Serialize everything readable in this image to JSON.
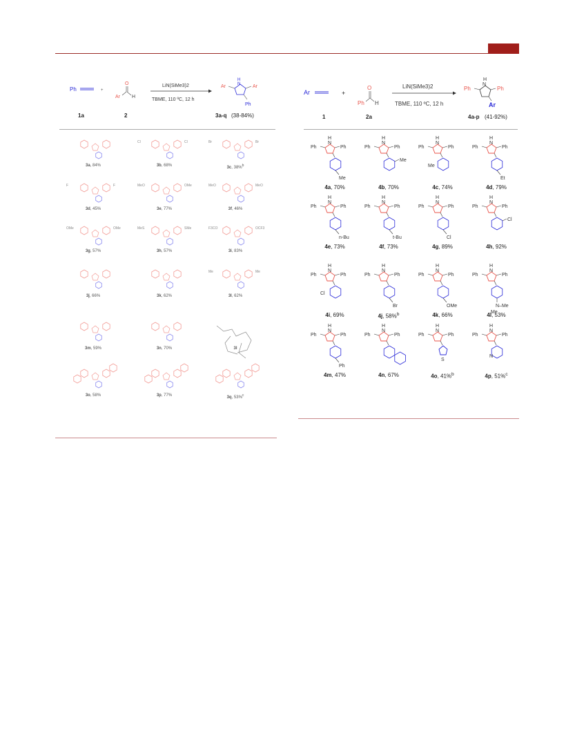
{
  "colors": {
    "accent": "#a01e1a",
    "substituent": "#e8534a",
    "reagent_blue": "#2a2ad8",
    "faded_red": "#f29b95"
  },
  "left_scheme": {
    "reactant1": "Ph",
    "reactant1_label": "1a",
    "plus": "+",
    "reactant2_ar": "Ar",
    "reactant2_h": "H",
    "reactant2_o": "O",
    "reactant2_label": "2",
    "reagent": "LiN(SiMe3)2",
    "conditions": "TBME, 110 ºC, 12 h",
    "product_ar_left": "Ar",
    "product_ar_right": "Ar",
    "product_nh": "H",
    "product_n": "N",
    "product_ph": "Ph",
    "product_label": "3a-q",
    "product_yield": "(38-84%)",
    "compounds": [
      {
        "id": "3a",
        "yield": ", 84%"
      },
      {
        "id": "3b",
        "yield": ", 68%"
      },
      {
        "id": "3c",
        "yield": ", 38%",
        "sup": "b"
      },
      {
        "id": "3d",
        "yield": ", 45%"
      },
      {
        "id": "3e",
        "yield": ", 77%"
      },
      {
        "id": "3f",
        "yield": ", 46%"
      },
      {
        "id": "3g",
        "yield": ", 57%"
      },
      {
        "id": "3h",
        "yield": ", 57%"
      },
      {
        "id": "3i",
        "yield": ", 83%"
      },
      {
        "id": "3j",
        "yield": ", 66%"
      },
      {
        "id": "3k",
        "yield": ", 62%"
      },
      {
        "id": "3l",
        "yield": ", 62%"
      },
      {
        "id": "3m",
        "yield": ", 59%"
      },
      {
        "id": "3n",
        "yield": ", 70%"
      },
      {
        "id": "3l",
        "yield": ""
      },
      {
        "id": "3o",
        "yield": ", 58%"
      },
      {
        "id": "3p",
        "yield": ", 77%"
      },
      {
        "id": "3q",
        "yield": ", 53%",
        "sup": "c"
      }
    ],
    "substituent_labels": [
      "Cl",
      "Cl",
      "Br",
      "Br",
      "F",
      "F",
      "MeO",
      "OMe",
      "MeO",
      "MeO",
      "OMe",
      "OMe",
      "MeS",
      "SMe",
      "F3CO",
      "OCF3",
      "Me",
      "Me",
      "Me",
      "Me",
      "Me",
      "Me",
      "Me",
      "Me",
      "Me",
      "Ph",
      "Ph"
    ]
  },
  "right_scheme": {
    "reactant1": "Ar",
    "reactant1_label": "1",
    "plus": "+",
    "reactant2_ph": "Ph",
    "reactant2_h": "H",
    "reactant2_o": "O",
    "reactant2_label": "2a",
    "reagent": "LiN(SiMe3)2",
    "conditions": "TBME, 110 ºC, 12 h",
    "product_ph_left": "Ph",
    "product_ph_right": "Ph",
    "product_nh": "H",
    "product_n": "N",
    "product_ar": "Ar",
    "product_label": "4a-p",
    "product_yield": "(41-92%)",
    "compounds": [
      {
        "id": "4a",
        "yield": ", 70%",
        "sub": "Me"
      },
      {
        "id": "4b",
        "yield": ", 70%",
        "sub": "Me"
      },
      {
        "id": "4c",
        "yield": ", 74%",
        "sub": "Me"
      },
      {
        "id": "4d",
        "yield": ", 79%",
        "sub": "Et"
      },
      {
        "id": "4e",
        "yield": ", 73%",
        "sub": "n-Bu"
      },
      {
        "id": "4f",
        "yield": ", 73%",
        "sub": "t-Bu"
      },
      {
        "id": "4g",
        "yield": ", 89%",
        "sub": "Cl"
      },
      {
        "id": "4h",
        "yield": ", 92%",
        "sub": "Cl"
      },
      {
        "id": "4i",
        "yield": ", 69%",
        "sub": "Cl"
      },
      {
        "id": "4j",
        "yield": ", 58%",
        "sup": "b",
        "sub": "Br"
      },
      {
        "id": "4k",
        "yield": ", 66%",
        "sub": "OMe"
      },
      {
        "id": "4l",
        "yield": ", 53%",
        "sub": "N–Me",
        "sub2": "Me"
      },
      {
        "id": "4m",
        "yield": ", 47%",
        "sub": "Ph"
      },
      {
        "id": "4n",
        "yield": ", 67%",
        "sub": ""
      },
      {
        "id": "4o",
        "yield": ", 41%",
        "sup": "b",
        "sub": "S"
      },
      {
        "id": "4p",
        "yield": ", 51%",
        "sup": "c",
        "sub": "N"
      }
    ],
    "pyrrole_ph": "Ph",
    "pyrrole_nh": "H",
    "pyrrole_n": "N"
  }
}
